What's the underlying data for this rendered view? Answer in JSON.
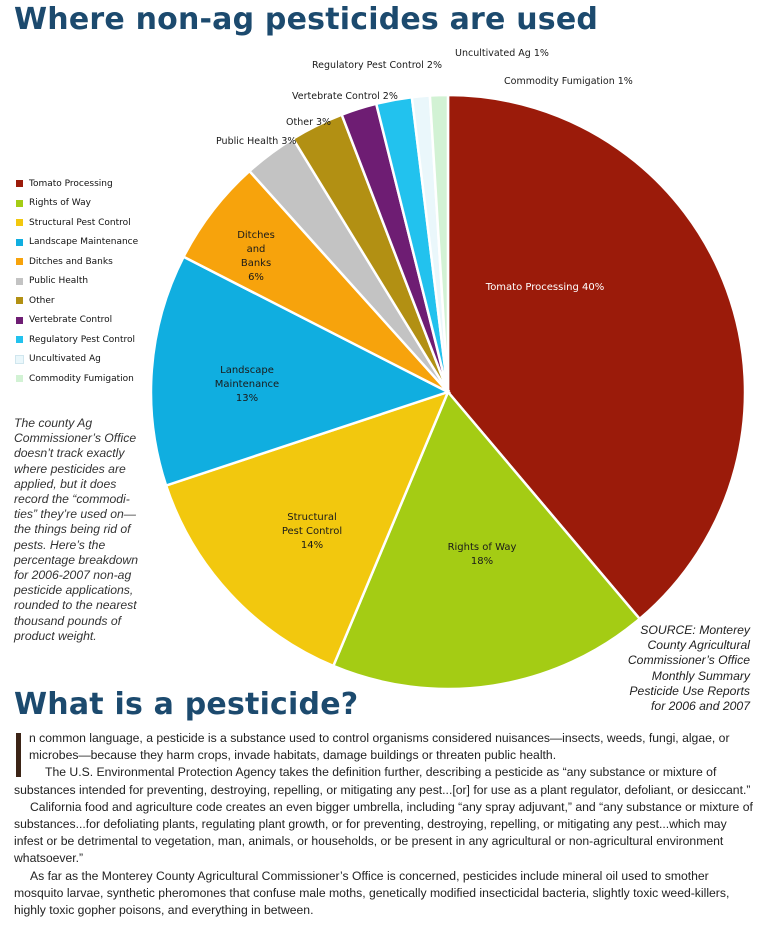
{
  "title": "Where non-ag pesticides are used",
  "section_title": "What is a pesticide?",
  "side_note": "The county Ag Commissioner’s Office doesn’t track exactly where pesticides are applied, but it does record the “commodi-ties” they’re used on—the things being rid of pests. Here’s the percentage breakdown for 2006-2007 non-ag pesticide applications, rounded to the nearest thousand pounds of product weight.",
  "source_lines": [
    "SOURCE: Monterey",
    "County Agricultural",
    "Commissioner’s Office",
    "Monthly Summary",
    "Pesticide Use Reports",
    "for 2006 and 2007"
  ],
  "article": {
    "dropcap": "I",
    "paragraphs": [
      "n common language, a pesticide is a substance used to control organisms considered nuisances—insects, weeds, fungi, algae, or microbes—because they harm crops, invade habitats, damage buildings or threaten public health.",
      "The U.S. Environmental Protection Agency takes the definition further, describing a pesticide as “any substance or mixture of substances intended for preventing, destroying, repelling, or mitigating any pest...[or] for use as a plant regulator, defoliant, or desiccant.”",
      "California food and agriculture code creates an even bigger umbrella, including “any spray adjuvant,” and “any substance or mixture of substances...for defoliating plants, regulating plant growth, or for preventing, destroying, repelling, or mitigating any pest...which may infest or be detrimental to vegetation, man, animals, or households, or be present in any agricultural or non-agricultural environment whatsoever.”",
      "As far as the Monterey County Agricultural Commissioner’s Office is concerned, pesticides include mineral oil used to smother mosquito larvae, synthetic pheromones that confuse male moths, genetically modified insecticidal bacteria, slightly toxic weed-killers, highly toxic gopher poisons, and everything in between."
    ]
  },
  "chart_data": {
    "type": "pie",
    "legend_position": "left",
    "slices": [
      {
        "name": "Tomato Processing",
        "value": 40,
        "label_lines": [
          "Tomato Processing 40%"
        ],
        "color": "#9b1b0a"
      },
      {
        "name": "Rights of Way",
        "value": 18,
        "label_lines": [
          "Rights of Way",
          "18%"
        ],
        "color": "#a4cc14"
      },
      {
        "name": "Structural Pest Control",
        "value": 14,
        "label_lines": [
          "Structural",
          "Pest Control",
          "14%"
        ],
        "color": "#f2c80e"
      },
      {
        "name": "Landscape Maintenance",
        "value": 13,
        "label_lines": [
          "Landscape",
          "Maintenance",
          "13%"
        ],
        "color": "#10aee0"
      },
      {
        "name": "Ditches and Banks",
        "value": 6,
        "label_lines": [
          "Ditches",
          "and",
          "Banks",
          "6%"
        ],
        "color": "#f7a30c"
      },
      {
        "name": "Public Health",
        "value": 3,
        "label_lines": [
          "Public Health  3%"
        ],
        "color": "#c3c3c3"
      },
      {
        "name": "Other",
        "value": 3,
        "label_lines": [
          "Other  3%"
        ],
        "color": "#b29013"
      },
      {
        "name": "Vertebrate Control",
        "value": 2,
        "label_lines": [
          "Vertebrate Control  2%"
        ],
        "color": "#6e1d73"
      },
      {
        "name": "Regulatory Pest Control",
        "value": 2,
        "label_lines": [
          "Regulatory Pest Control  2%"
        ],
        "color": "#22c2ee"
      },
      {
        "name": "Uncultivated Ag",
        "value": 1,
        "label_lines": [
          "Uncultivated Ag  1%"
        ],
        "color": "#eaf7fb"
      },
      {
        "name": "Commodity Fumigation",
        "value": 1,
        "label_lines": [
          "Commodity Fumigation  1%"
        ],
        "color": "#d2f2d4"
      }
    ]
  }
}
